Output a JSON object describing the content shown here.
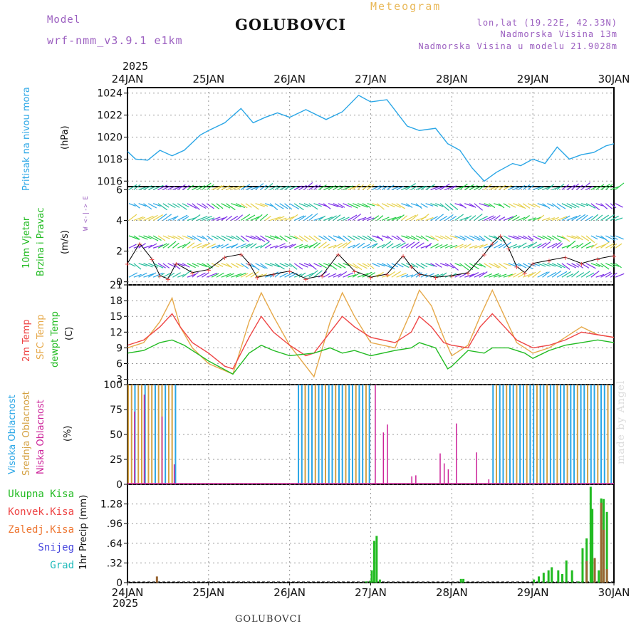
{
  "header": {
    "model_label": "Model",
    "model_name": "wrf-nmm_v3.9.1 e1km",
    "title": "GOLUBOVCI",
    "meteogram_label": "Meteogram",
    "lonlat": "lon,lat (19.22E, 42.33N)",
    "elevation": "Nadmorska Visina 13m",
    "model_elevation": "Nadmorska Visina u modelu 21.9028m",
    "year_top": "2025",
    "year_bottom": "2025"
  },
  "footer": {
    "station": "GOLUBOVCI",
    "watermark": "made by Angel"
  },
  "time_axis": {
    "labels": [
      "24JAN",
      "25JAN",
      "26JAN",
      "27JAN",
      "28JAN",
      "29JAN",
      "30JAN"
    ]
  },
  "panel_labels": {
    "pressure": [
      {
        "text": "Pritisak na nivou mora",
        "color": "#2aa6e6"
      },
      {
        "text": "(hPa)",
        "color": "#111111"
      }
    ],
    "wind": [
      {
        "text": "10m Vjetar",
        "color": "#22bb22"
      },
      {
        "text": "Brzina i Pravac",
        "color": "#22bb22"
      },
      {
        "text": "(m/s)",
        "color": "#111111"
      }
    ],
    "wind_compass": "W <-|-> E",
    "temperature": [
      {
        "text": "2m Temp",
        "color": "#ee4444"
      },
      {
        "text": "SFC Temp",
        "color": "#e6a94a"
      },
      {
        "text": "dewpt Temp",
        "color": "#22bb22"
      },
      {
        "text": "(C)",
        "color": "#111111"
      }
    ],
    "clouds": [
      {
        "text": "Visoka Oblacnost",
        "color": "#2aa6e6"
      },
      {
        "text": "Srednja Oblacnost",
        "color": "#d4a040"
      },
      {
        "text": "Niska Oblacnost",
        "color": "#cc2299"
      },
      {
        "text": "(%)",
        "color": "#111111"
      }
    ],
    "precip_axis": "1hr Precip (mm)",
    "precip_legend": [
      {
        "text": "Ukupna Kisa",
        "color": "#22bb22"
      },
      {
        "text": "Konvek.Kisa",
        "color": "#ee4444"
      },
      {
        "text": "Zaledj.Kisa",
        "color": "#ee7733"
      },
      {
        "text": "Snijeg",
        "color": "#4444dd"
      },
      {
        "text": "Grad",
        "color": "#22bbbb"
      }
    ]
  },
  "colors": {
    "pressure": "#2aa6e6",
    "t2m": "#ee4444",
    "tsfc": "#e6a94a",
    "dewpt": "#22bb22",
    "cloud_high": "#2aa6e6",
    "cloud_mid": "#d4a040",
    "cloud_low": "#cc2299",
    "precip_total": "#22bb22",
    "precip_conv": "#996633"
  },
  "chart_data": [
    {
      "type": "line",
      "panel": "pressure",
      "xlabel": "",
      "ylabel": "Pritisak na nivou mora (hPa)",
      "ylim": [
        1015.5,
        1024.5
      ],
      "yticks": [
        1016,
        1018,
        1020,
        1022,
        1024
      ],
      "series": [
        {
          "x": [
            0,
            0.1,
            0.25,
            0.4,
            0.55,
            0.7,
            0.9,
            1.0,
            1.2,
            1.4,
            1.55,
            1.7,
            1.85,
            2.0,
            2.2,
            2.45,
            2.65,
            2.85,
            3.0,
            3.2,
            3.45,
            3.6,
            3.8,
            3.95,
            4.1,
            4.25,
            4.4,
            4.55,
            4.75,
            4.85,
            5.0,
            5.15,
            5.3,
            5.45,
            5.6,
            5.75,
            5.9,
            6.0
          ],
          "values": [
            1018.7,
            1018.0,
            1017.9,
            1018.8,
            1018.3,
            1018.8,
            1020.2,
            1020.6,
            1021.3,
            1022.6,
            1021.3,
            1021.8,
            1022.2,
            1021.8,
            1022.5,
            1021.6,
            1022.3,
            1023.8,
            1023.2,
            1023.4,
            1021.0,
            1020.6,
            1020.8,
            1019.4,
            1018.8,
            1017.2,
            1016.0,
            1016.8,
            1017.6,
            1017.4,
            1018.0,
            1017.6,
            1019.1,
            1018.0,
            1018.4,
            1018.6,
            1019.2,
            1019.4
          ]
        }
      ]
    },
    {
      "type": "line",
      "panel": "wind",
      "ylabel": "10m Vjetar Brzina i Pravac (m/s)",
      "ylim": [
        -0.2,
        6.2
      ],
      "yticks": [
        0,
        2,
        4,
        6
      ],
      "series": [
        {
          "name": "wind speed",
          "x": [
            0,
            0.15,
            0.3,
            0.4,
            0.5,
            0.6,
            0.8,
            1.0,
            1.2,
            1.4,
            1.5,
            1.6,
            1.8,
            2.0,
            2.2,
            2.4,
            2.6,
            2.8,
            3.0,
            3.2,
            3.4,
            3.5,
            3.6,
            3.8,
            4.0,
            4.2,
            4.4,
            4.5,
            4.6,
            4.7,
            4.8,
            4.9,
            5.0,
            5.2,
            5.4,
            5.6,
            5.8,
            6.0
          ],
          "values": [
            1.2,
            2.5,
            1.5,
            0.4,
            0.2,
            1.2,
            0.6,
            0.8,
            1.6,
            1.8,
            1.2,
            0.3,
            0.5,
            0.7,
            0.2,
            0.4,
            1.8,
            0.7,
            0.3,
            0.5,
            1.7,
            1.0,
            0.5,
            0.3,
            0.4,
            0.6,
            1.8,
            2.5,
            3.0,
            2.2,
            1.0,
            0.6,
            1.2,
            1.4,
            1.6,
            1.2,
            1.5,
            1.7
          ]
        }
      ],
      "arrow_rows": [
        0.3,
        1.2,
        2.2,
        3.0,
        4.0,
        5.1,
        6.0
      ]
    },
    {
      "type": "line",
      "panel": "temperature",
      "ylabel": "(C)",
      "ylim": [
        2,
        21
      ],
      "yticks": [
        3,
        6,
        9,
        12,
        15,
        18,
        21
      ],
      "series": [
        {
          "name": "2m Temp",
          "x": [
            0,
            0.2,
            0.4,
            0.55,
            0.65,
            0.8,
            1.0,
            1.2,
            1.3,
            1.5,
            1.65,
            1.8,
            2.0,
            2.2,
            2.3,
            2.5,
            2.65,
            2.8,
            3.0,
            3.3,
            3.5,
            3.6,
            3.75,
            3.9,
            4.0,
            4.2,
            4.35,
            4.5,
            4.65,
            4.8,
            5.0,
            5.2,
            5.4,
            5.6,
            5.8,
            6.0
          ],
          "values": [
            9.5,
            10.5,
            13,
            15.5,
            13,
            10,
            8,
            5.5,
            5,
            11,
            15,
            12,
            9.5,
            7.5,
            8,
            12,
            15,
            13,
            11,
            10,
            12,
            15,
            13,
            10,
            9.5,
            9,
            13,
            15.5,
            13,
            10.5,
            9,
            9.5,
            10.5,
            12,
            11.5,
            11
          ]
        },
        {
          "name": "SFC Temp",
          "x": [
            0,
            0.2,
            0.4,
            0.55,
            0.65,
            0.8,
            1.0,
            1.3,
            1.5,
            1.65,
            1.8,
            2.0,
            2.3,
            2.5,
            2.65,
            2.8,
            3.0,
            3.3,
            3.5,
            3.6,
            3.75,
            3.9,
            4.0,
            4.2,
            4.35,
            4.5,
            4.65,
            4.8,
            5.0,
            5.2,
            5.4,
            5.6,
            5.8,
            6.0
          ],
          "values": [
            9,
            10,
            14,
            18.5,
            13,
            9,
            6,
            4,
            14,
            19.5,
            15,
            9.5,
            3.5,
            14,
            19.5,
            15,
            10,
            9,
            16,
            20,
            17,
            11,
            7.5,
            9.5,
            15,
            20,
            15,
            10,
            8,
            9,
            11,
            13,
            11.5,
            11
          ]
        },
        {
          "name": "dewpt Temp",
          "x": [
            0,
            0.2,
            0.4,
            0.55,
            0.7,
            0.9,
            1.0,
            1.3,
            1.5,
            1.65,
            1.8,
            2.0,
            2.3,
            2.5,
            2.65,
            2.8,
            3.0,
            3.3,
            3.5,
            3.6,
            3.8,
            3.95,
            4.0,
            4.2,
            4.4,
            4.5,
            4.7,
            4.9,
            5.0,
            5.2,
            5.4,
            5.6,
            5.8,
            6.0
          ],
          "values": [
            8,
            8.5,
            10,
            10.5,
            9.5,
            7.5,
            6.5,
            4,
            8,
            9.5,
            8.5,
            7.5,
            8,
            9,
            8,
            8.5,
            7.5,
            8.5,
            9,
            10,
            9,
            5,
            5.5,
            8.5,
            8,
            9,
            9,
            8,
            7,
            8.5,
            9.5,
            10,
            10.5,
            10
          ]
        }
      ]
    },
    {
      "type": "bar",
      "panel": "clouds",
      "ylabel": "(%)",
      "ylim": [
        0,
        100
      ],
      "yticks": [
        0,
        25,
        50,
        75,
        100
      ],
      "blocks": [
        {
          "from": 0.0,
          "to": 0.6,
          "series": "mid",
          "value": 100
        },
        {
          "from": 2.1,
          "to": 3.0,
          "series": "high",
          "value": 100
        },
        {
          "from": 4.5,
          "to": 6.0,
          "series": "high",
          "value": 100
        }
      ],
      "low_bars": [
        {
          "x": 0.08,
          "value": 73
        },
        {
          "x": 0.2,
          "value": 90
        },
        {
          "x": 0.42,
          "value": 68
        },
        {
          "x": 0.57,
          "value": 20
        },
        {
          "x": 3.05,
          "value": 100
        },
        {
          "x": 3.15,
          "value": 52
        },
        {
          "x": 3.2,
          "value": 60
        },
        {
          "x": 3.5,
          "value": 8
        },
        {
          "x": 3.55,
          "value": 9
        },
        {
          "x": 3.85,
          "value": 31
        },
        {
          "x": 3.9,
          "value": 21
        },
        {
          "x": 3.95,
          "value": 15
        },
        {
          "x": 4.05,
          "value": 61
        },
        {
          "x": 4.3,
          "value": 32
        },
        {
          "x": 4.45,
          "value": 5
        }
      ]
    },
    {
      "type": "bar",
      "panel": "precipitation",
      "ylabel": "1hr Precip (mm)",
      "ylim": [
        0,
        1.6
      ],
      "yticks": [
        0,
        0.32,
        0.64,
        0.96,
        1.28
      ],
      "series": [
        {
          "name": "Ukupna Kisa",
          "x": [
            2.93,
            2.98,
            3.0,
            3.03,
            3.06,
            3.1,
            4.1,
            4.13,
            5.0,
            5.06,
            5.12,
            5.18,
            5.22,
            5.3,
            5.35,
            5.4,
            5.47,
            5.55,
            5.6,
            5.65,
            5.7,
            5.72,
            5.75,
            5.8,
            5.83,
            5.86,
            5.9
          ],
          "values": [
            0.02,
            0.03,
            0.2,
            0.68,
            0.76,
            0.05,
            0.06,
            0.06,
            0.05,
            0.1,
            0.16,
            0.2,
            0.25,
            0.2,
            0.14,
            0.36,
            0.2,
            0.02,
            0.56,
            0.72,
            1.56,
            1.2,
            0.38,
            0.2,
            1.37,
            1.36,
            1.15
          ]
        },
        {
          "name": "Konvek.Kisa",
          "x": [
            0.35,
            5.65,
            5.75,
            5.83,
            5.86,
            5.9
          ],
          "values": [
            0.1,
            0.35,
            0.4,
            1.3,
            0.86,
            0.22
          ]
        }
      ]
    }
  ]
}
